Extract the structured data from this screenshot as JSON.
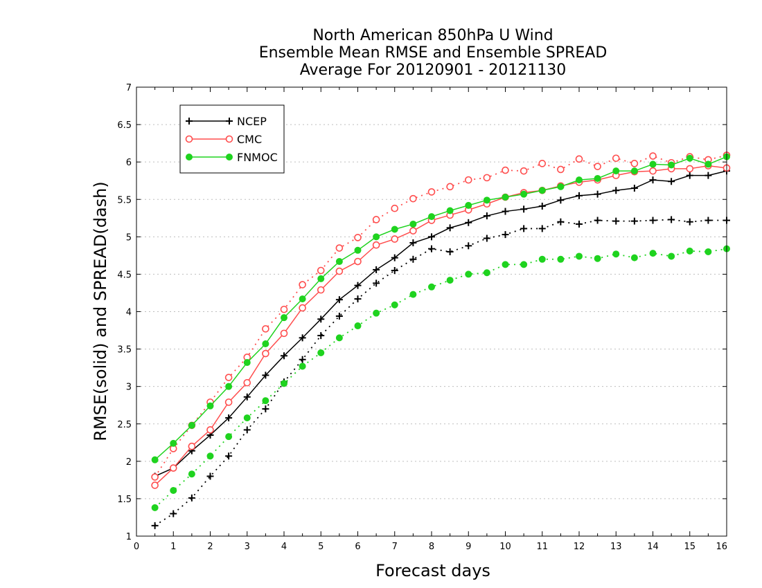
{
  "chart_data": {
    "type": "line",
    "title_lines": [
      "North American 850hPa U Wind",
      "Ensemble Mean RMSE and Ensemble SPREAD",
      "Average For 20120901 - 20121130"
    ],
    "xlabel": "Forecast days",
    "ylabel": "RMSE(solid) and SPREAD(dash)",
    "xlim": [
      0,
      16
    ],
    "ylim": [
      1,
      7
    ],
    "x_ticks": [
      "0",
      "1",
      "2",
      "3",
      "4",
      "5",
      "6",
      "7",
      "8",
      "9",
      "10",
      "11",
      "12",
      "13",
      "14",
      "15",
      "16"
    ],
    "y_ticks": [
      "1",
      "1.5",
      "2",
      "2.5",
      "3",
      "3.5",
      "4",
      "4.5",
      "5",
      "5.5",
      "6",
      "6.5",
      "7"
    ],
    "grid": true,
    "legend_position": "top-left",
    "x": [
      0.5,
      1,
      1.5,
      2,
      2.5,
      3,
      3.5,
      4,
      4.5,
      5,
      5.5,
      6,
      6.5,
      7,
      7.5,
      8,
      8.5,
      9,
      9.5,
      10,
      10.5,
      11,
      11.5,
      12,
      12.5,
      13,
      13.5,
      14,
      14.5,
      15,
      15.5,
      16
    ],
    "series": [
      {
        "name": "NCEP",
        "color": "#000000",
        "marker": "plus",
        "rmse": [
          1.8,
          1.91,
          2.14,
          2.35,
          2.58,
          2.86,
          3.15,
          3.41,
          3.65,
          3.9,
          4.16,
          4.35,
          4.56,
          4.72,
          4.92,
          5.0,
          5.12,
          5.19,
          5.28,
          5.34,
          5.37,
          5.41,
          5.49,
          5.55,
          5.57,
          5.62,
          5.65,
          5.76,
          5.74,
          5.82,
          5.82,
          5.88
        ],
        "spread": [
          1.14,
          1.3,
          1.51,
          1.8,
          2.07,
          2.42,
          2.7,
          3.06,
          3.36,
          3.68,
          3.94,
          4.17,
          4.38,
          4.55,
          4.7,
          4.84,
          4.8,
          4.88,
          4.98,
          5.03,
          5.11,
          5.11,
          5.2,
          5.17,
          5.22,
          5.21,
          5.21,
          5.22,
          5.23,
          5.2,
          5.22,
          5.22
        ]
      },
      {
        "name": "CMC",
        "color": "#ff4d4d",
        "marker": "open-circle",
        "rmse": [
          1.68,
          1.91,
          2.2,
          2.42,
          2.79,
          3.05,
          3.44,
          3.71,
          4.05,
          4.29,
          4.54,
          4.67,
          4.89,
          4.97,
          5.08,
          5.22,
          5.29,
          5.36,
          5.44,
          5.53,
          5.59,
          5.62,
          5.68,
          5.73,
          5.76,
          5.82,
          5.87,
          5.88,
          5.91,
          5.91,
          5.95,
          5.92
        ],
        "spread": [
          1.79,
          2.17,
          2.48,
          2.79,
          3.12,
          3.39,
          3.77,
          4.03,
          4.36,
          4.55,
          4.85,
          4.99,
          5.23,
          5.38,
          5.51,
          5.6,
          5.67,
          5.76,
          5.79,
          5.89,
          5.88,
          5.98,
          5.9,
          6.04,
          5.94,
          6.05,
          5.98,
          6.08,
          5.99,
          6.07,
          6.03,
          6.09
        ]
      },
      {
        "name": "FNMOC",
        "color": "#1fd31f",
        "marker": "filled-circle",
        "rmse": [
          2.02,
          2.24,
          2.48,
          2.74,
          3.0,
          3.32,
          3.57,
          3.92,
          4.17,
          4.44,
          4.67,
          4.82,
          5.0,
          5.1,
          5.17,
          5.27,
          5.35,
          5.42,
          5.49,
          5.53,
          5.57,
          5.62,
          5.67,
          5.76,
          5.78,
          5.88,
          5.88,
          5.97,
          5.96,
          6.05,
          5.97,
          6.07
        ],
        "spread": [
          1.38,
          1.61,
          1.83,
          2.07,
          2.33,
          2.58,
          2.81,
          3.04,
          3.27,
          3.45,
          3.65,
          3.81,
          3.98,
          4.09,
          4.23,
          4.33,
          4.42,
          4.5,
          4.52,
          4.63,
          4.63,
          4.7,
          4.7,
          4.74,
          4.71,
          4.77,
          4.72,
          4.78,
          4.74,
          4.81,
          4.8,
          4.84
        ]
      }
    ]
  }
}
